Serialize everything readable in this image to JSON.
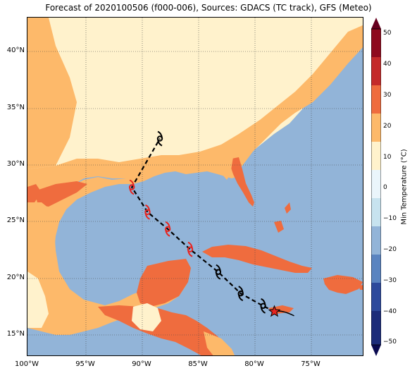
{
  "title": "Forecast of 2020100506 (f000-006), Sources: GDACS (TC track), GFS (Meteo)",
  "map": {
    "lon_range": [
      -100,
      -70
    ],
    "lat_range": [
      13,
      43
    ],
    "lon_ticks": [
      "100°W",
      "95°W",
      "90°W",
      "85°W",
      "80°W",
      "75°W"
    ],
    "lat_ticks": [
      "40°N",
      "35°N",
      "30°N",
      "25°N",
      "20°N",
      "15°N"
    ],
    "ocean_color": "#92b4d8",
    "gridlines": true
  },
  "colorbar": {
    "label": "Min Temperature (°C)",
    "ticks": [
      "50",
      "40",
      "30",
      "20",
      "10",
      "0",
      "−10",
      "−20",
      "−30",
      "−40",
      "−50"
    ],
    "colors": [
      "#67001f",
      "#b2182b",
      "#d6604d",
      "#f4a582",
      "#fddbc7",
      "#f7f7f7",
      "#d1e5f0",
      "#92c5de",
      "#4393c3",
      "#2166ac",
      "#053061"
    ]
  },
  "track": {
    "points": [
      {
        "lon": -78.0,
        "lat": 17.0,
        "type": "current"
      },
      {
        "lon": -79.0,
        "lat": 17.5,
        "type": "hurricane-black"
      },
      {
        "lon": -81.0,
        "lat": 18.6,
        "type": "hurricane-black"
      },
      {
        "lon": -83.0,
        "lat": 20.5,
        "type": "hurricane-black"
      },
      {
        "lon": -85.5,
        "lat": 22.5,
        "type": "hurricane-red"
      },
      {
        "lon": -87.5,
        "lat": 24.3,
        "type": "hurricane-red"
      },
      {
        "lon": -89.3,
        "lat": 25.8,
        "type": "hurricane-red"
      },
      {
        "lon": -90.7,
        "lat": 28.0,
        "type": "hurricane-red"
      },
      {
        "lon": -88.2,
        "lat": 32.3,
        "type": "hurricane-black"
      }
    ]
  }
}
